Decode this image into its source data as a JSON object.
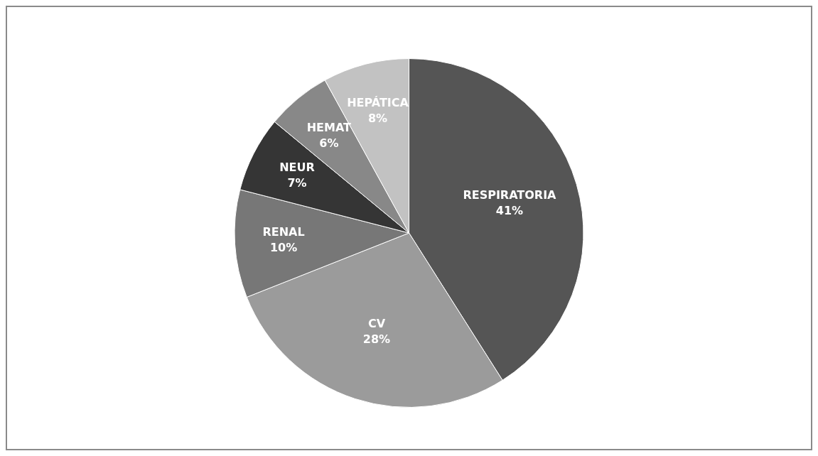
{
  "chart_data": {
    "type": "pie",
    "categories": [
      "RESPIRATORIA",
      "CV",
      "RENAL",
      "NEUR",
      "HEMAT",
      "HEPÁTICA"
    ],
    "values": [
      41,
      28,
      10,
      7,
      6,
      8
    ],
    "value_labels": [
      "41%",
      "28%",
      "10%",
      "7%",
      "6%",
      "8%"
    ],
    "colors": [
      "#555555",
      "#9b9b9b",
      "#777777",
      "#353535",
      "#888888",
      "#c2c2c2"
    ],
    "legend": false
  }
}
